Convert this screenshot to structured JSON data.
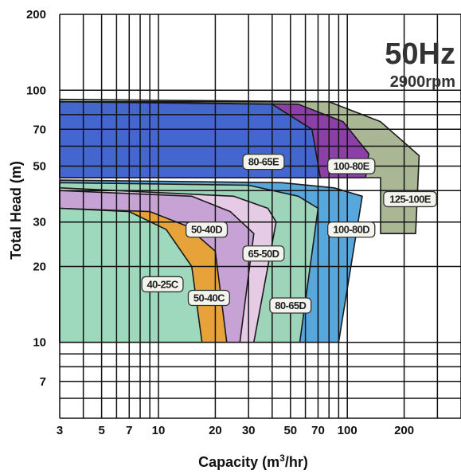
{
  "chart_data": {
    "type": "area",
    "title": "50Hz",
    "subtitle": "2900rpm",
    "xlabel": "Capacity (m³/hr)",
    "ylabel": "Total Head (m)",
    "x_scale": "log",
    "y_scale": "log",
    "xlim": [
      3,
      400
    ],
    "ylim": [
      5,
      200
    ],
    "grid": true,
    "x_ticks": [
      3,
      5,
      7,
      10,
      20,
      30,
      50,
      70,
      100,
      200
    ],
    "y_ticks": [
      10,
      20,
      30,
      50,
      70,
      100,
      200
    ],
    "y_tick_labels": [
      "10",
      "20",
      "30",
      "50",
      "70",
      "100",
      "200"
    ],
    "y_minor_labeled": [
      7
    ],
    "series": [
      {
        "name": "125-100E",
        "color": "#a9b795",
        "points": [
          [
            3,
            92
          ],
          [
            80,
            90
          ],
          [
            150,
            75
          ],
          [
            240,
            55
          ],
          [
            230,
            27
          ],
          [
            150,
            27
          ],
          [
            150,
            45
          ],
          [
            3,
            45
          ]
        ]
      },
      {
        "name": "100-80E",
        "color": "#8d3fa8",
        "points": [
          [
            3,
            90
          ],
          [
            55,
            88
          ],
          [
            95,
            75
          ],
          [
            130,
            56
          ],
          [
            125,
            45
          ],
          [
            3,
            45
          ]
        ]
      },
      {
        "name": "80-65E",
        "color": "#4466cf",
        "points": [
          [
            3,
            90
          ],
          [
            40,
            88
          ],
          [
            65,
            70
          ],
          [
            72,
            45
          ],
          [
            3,
            45
          ]
        ]
      },
      {
        "name": "100-80D",
        "color": "#57a6dc",
        "points": [
          [
            3,
            44
          ],
          [
            45,
            43
          ],
          [
            85,
            41
          ],
          [
            120,
            38
          ],
          [
            90,
            10
          ],
          [
            48,
            10
          ],
          [
            3,
            10
          ]
        ]
      },
      {
        "name": "80-65D",
        "color": "#9dd4ba",
        "points": [
          [
            3,
            43
          ],
          [
            30,
            42
          ],
          [
            55,
            38
          ],
          [
            70,
            34
          ],
          [
            56,
            10
          ],
          [
            35,
            10
          ],
          [
            3,
            10
          ]
        ]
      },
      {
        "name": "65-50D",
        "color": "#e6cbe6",
        "points": [
          [
            3,
            41
          ],
          [
            25,
            38
          ],
          [
            38,
            34
          ],
          [
            42,
            30
          ],
          [
            32,
            10
          ],
          [
            28,
            10
          ],
          [
            3,
            10
          ]
        ]
      },
      {
        "name": "50-40D",
        "color": "#c7a2d5",
        "points": [
          [
            3,
            40
          ],
          [
            15,
            38
          ],
          [
            24,
            33
          ],
          [
            32,
            27
          ],
          [
            27,
            10
          ],
          [
            3,
            10
          ]
        ]
      },
      {
        "name": "50-40C",
        "color": "#e7a33a",
        "points": [
          [
            3,
            34
          ],
          [
            9,
            33
          ],
          [
            14,
            29
          ],
          [
            20,
            23
          ],
          [
            23,
            10
          ],
          [
            3,
            10
          ]
        ]
      },
      {
        "name": "40-25C",
        "color": "#9fd9bd",
        "points": [
          [
            3,
            34
          ],
          [
            7,
            33
          ],
          [
            11,
            28
          ],
          [
            15,
            20
          ],
          [
            17,
            10
          ],
          [
            3,
            10
          ]
        ]
      }
    ],
    "region_labels": [
      {
        "text": "80-65E",
        "x": 36,
        "y": 52
      },
      {
        "text": "100-80E",
        "x": 105,
        "y": 50
      },
      {
        "text": "125-100E",
        "x": 215,
        "y": 37
      },
      {
        "text": "100-80D",
        "x": 105,
        "y": 28
      },
      {
        "text": "50-40D",
        "x": 18,
        "y": 28
      },
      {
        "text": "65-50D",
        "x": 36,
        "y": 22.5
      },
      {
        "text": "40-25C",
        "x": 10.5,
        "y": 17
      },
      {
        "text": "50-40C",
        "x": 18.5,
        "y": 15
      },
      {
        "text": "80-65D",
        "x": 50,
        "y": 14
      }
    ]
  }
}
